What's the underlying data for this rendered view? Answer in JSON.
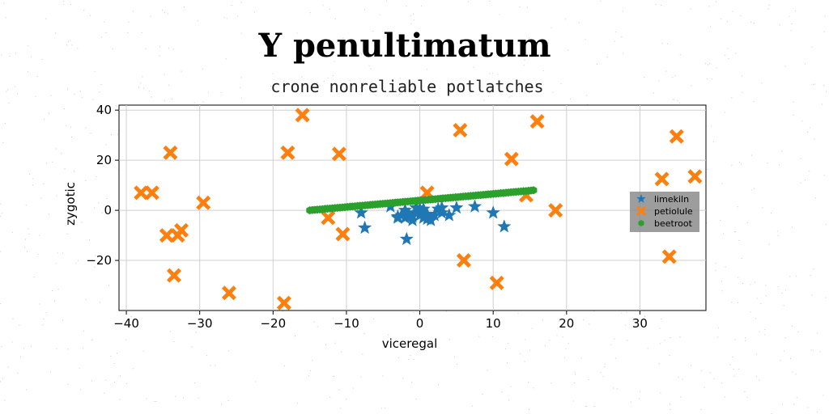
{
  "chart_data": {
    "type": "scatter",
    "title": "Y penultimatum",
    "subtitle": "crone nonreliable potlatches",
    "xlabel": "viceregal",
    "ylabel": "zygotic",
    "xlim": [
      -41,
      39
    ],
    "ylim": [
      -40,
      42
    ],
    "xticks": [
      -40,
      -30,
      -20,
      -10,
      0,
      10,
      20,
      30
    ],
    "yticks": [
      -20,
      0,
      20,
      40
    ],
    "xtick_labels": [
      "−40",
      "−30",
      "−20",
      "−10",
      "0",
      "10",
      "20",
      "30"
    ],
    "ytick_labels": [
      "−20",
      "0",
      "20",
      "40"
    ],
    "grid": true,
    "legend_position": "right",
    "series": [
      {
        "name": "limekiln",
        "marker": "star",
        "color": "#1f77b4",
        "points": [
          [
            -8,
            -1
          ],
          [
            -7.5,
            -7
          ],
          [
            -4,
            1.5
          ],
          [
            -3,
            -2.5
          ],
          [
            -2.5,
            -2
          ],
          [
            -2,
            -3
          ],
          [
            -1.8,
            -11.5
          ],
          [
            -1.5,
            -1.5
          ],
          [
            -1,
            -2.5
          ],
          [
            -0.5,
            -1
          ],
          [
            0,
            -2
          ],
          [
            0.5,
            -3
          ],
          [
            1,
            -1.5
          ],
          [
            1.5,
            -4
          ],
          [
            2,
            -2
          ],
          [
            2.5,
            0.5
          ],
          [
            3,
            -1
          ],
          [
            4,
            -2
          ],
          [
            5,
            1
          ],
          [
            7.5,
            1.5
          ],
          [
            10,
            -1
          ],
          [
            11.5,
            -6.5
          ],
          [
            -3,
            -3
          ],
          [
            -2,
            0
          ],
          [
            -1,
            -4
          ],
          [
            0,
            0.5
          ],
          [
            1,
            -3.5
          ],
          [
            3,
            1
          ],
          [
            0.5,
            0.5
          ],
          [
            -0.5,
            1
          ]
        ]
      },
      {
        "name": "petiolule",
        "marker": "x",
        "color": "#ff7f0e",
        "points": [
          [
            -38,
            7
          ],
          [
            -36.5,
            7
          ],
          [
            -34,
            23
          ],
          [
            -34.5,
            -10
          ],
          [
            -33,
            -10
          ],
          [
            -32.5,
            -8
          ],
          [
            -33.5,
            -26
          ],
          [
            -29.5,
            3
          ],
          [
            -26,
            -33
          ],
          [
            -18.5,
            -37
          ],
          [
            -18,
            23
          ],
          [
            -16,
            38
          ],
          [
            -12.5,
            -3
          ],
          [
            -11,
            22.5
          ],
          [
            -10.5,
            -9.5
          ],
          [
            1,
            7
          ],
          [
            5.5,
            32
          ],
          [
            6,
            -20
          ],
          [
            10.5,
            -29
          ],
          [
            12.5,
            20.5
          ],
          [
            14.5,
            6
          ],
          [
            16,
            35.5
          ],
          [
            18.5,
            0
          ],
          [
            33,
            12.5
          ],
          [
            34,
            -18.5
          ],
          [
            35,
            29.5
          ],
          [
            37.5,
            13.5
          ]
        ]
      },
      {
        "name": "beetroot",
        "marker": "hexagon",
        "color": "#2ca02c",
        "line": {
          "x_from": -15,
          "x_to": 15.5,
          "y_from": 0,
          "y_to": 8,
          "count": 90
        }
      }
    ]
  }
}
